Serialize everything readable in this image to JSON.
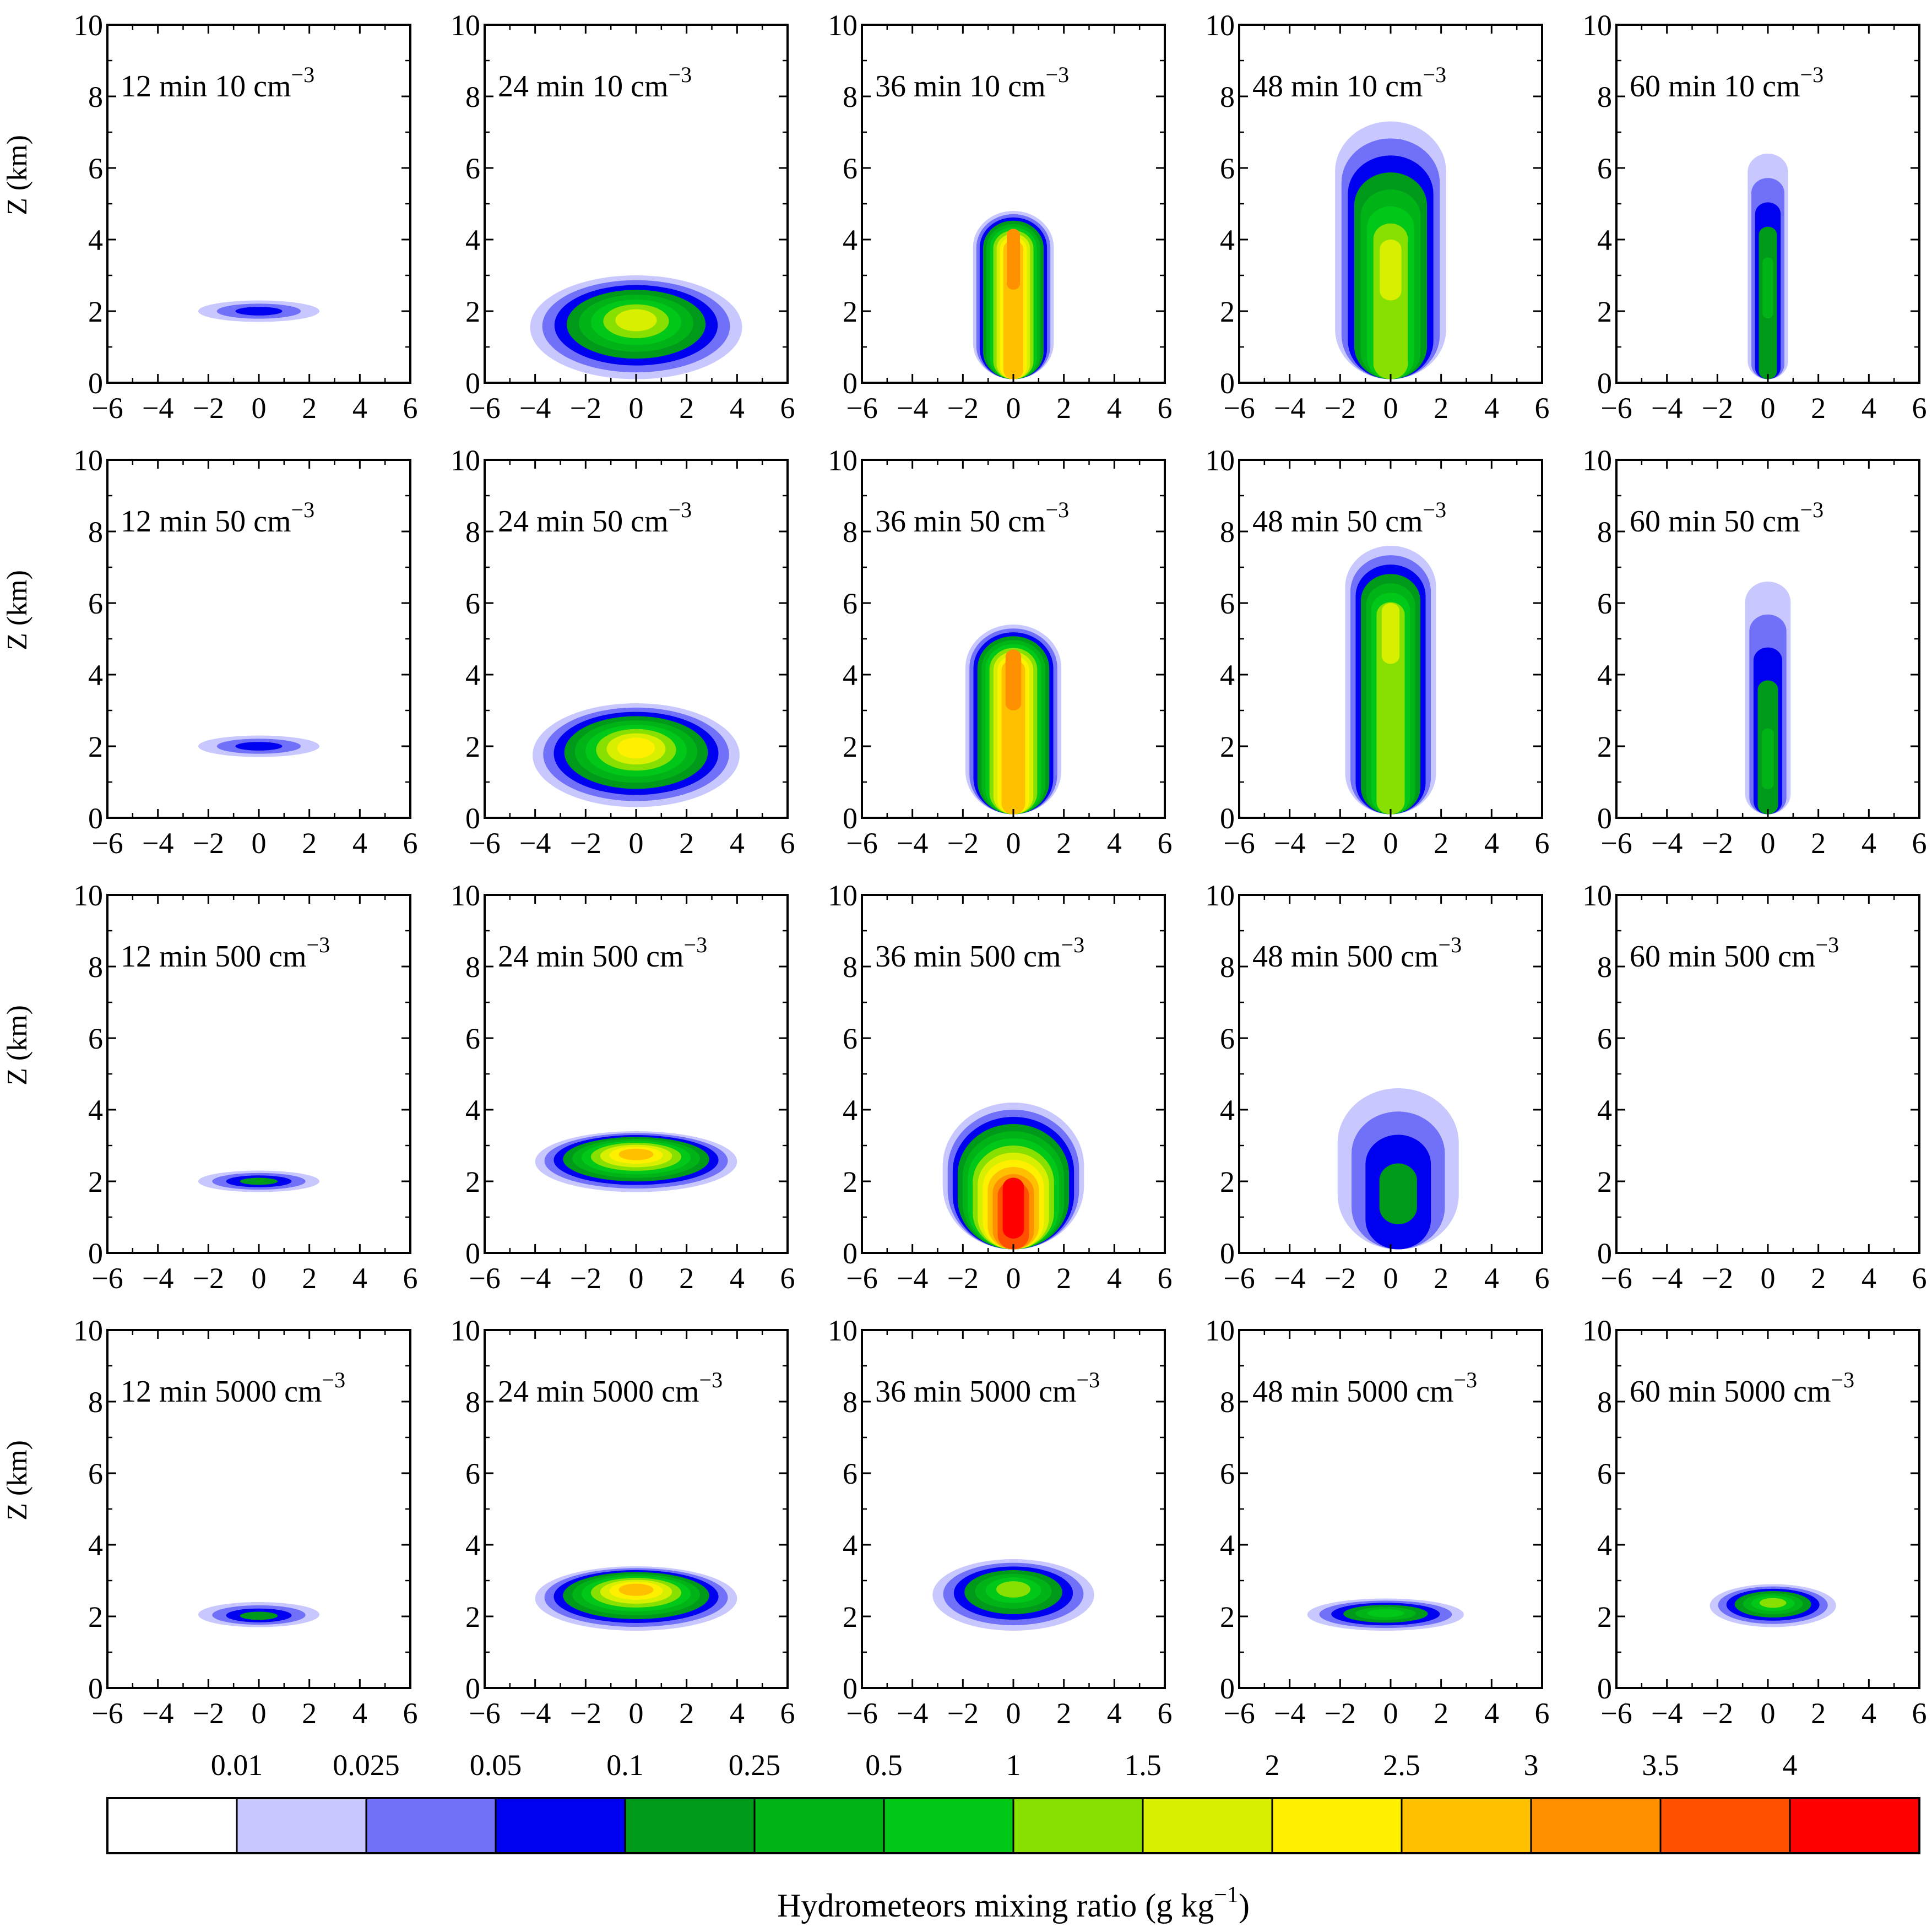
{
  "chart_data": {
    "type": "contour-panels",
    "rows": [
      {
        "concentration_num": "10",
        "concentration_unit": "cm",
        "concentration_exp": "−3"
      },
      {
        "concentration_num": "50",
        "concentration_unit": "cm",
        "concentration_exp": "−3"
      },
      {
        "concentration_num": "500",
        "concentration_unit": "cm",
        "concentration_exp": "−3"
      },
      {
        "concentration_num": "5000",
        "concentration_unit": "cm",
        "concentration_exp": "−3"
      }
    ],
    "columns": [
      {
        "time": "12 min"
      },
      {
        "time": "24 min"
      },
      {
        "time": "36 min"
      },
      {
        "time": "48 min"
      },
      {
        "time": "60 min"
      }
    ],
    "xaxis": {
      "ticks": [
        "−6",
        "−4",
        "−2",
        "0",
        "2",
        "4",
        "6"
      ],
      "range": [
        -6,
        6
      ]
    },
    "yaxis": {
      "ticks": [
        "0",
        "2",
        "4",
        "6",
        "8",
        "10"
      ],
      "range": [
        0,
        10
      ],
      "label": "Z (km)"
    },
    "colorbar": {
      "title": "Hydrometeors mixing ratio (g kg",
      "title_exp": "−1",
      "title_close": ")",
      "levels": [
        "0.01",
        "0.025",
        "0.05",
        "0.1",
        "0.25",
        "0.5",
        "1",
        "1.5",
        "2",
        "2.5",
        "3",
        "3.5",
        "4"
      ],
      "colors": [
        "#ffffff",
        "#c8c8ff",
        "#7070f8",
        "#0000f0",
        "#009a1a",
        "#00b418",
        "#00c818",
        "#88e000",
        "#d8f000",
        "#fff000",
        "#ffc000",
        "#ff9000",
        "#ff5000",
        "#ff0000"
      ]
    },
    "cells": [
      [
        {
          "shape": "blob",
          "x0": 0,
          "hw": 2.4,
          "zb": 1.7,
          "zt": 2.3,
          "core": 3,
          "cz": 2.0
        },
        {
          "shape": "blob",
          "x0": 0,
          "hw": 4.2,
          "zb": 0.1,
          "zt": 3.0,
          "core": 8,
          "cz": 1.8
        },
        {
          "shape": "column",
          "x0": 0,
          "hw": 1.6,
          "zb": 0.1,
          "zt": 4.8,
          "core": 11,
          "cz": 3.8
        },
        {
          "shape": "column",
          "x0": 0,
          "hw": 2.2,
          "zb": 0.1,
          "zt": 7.3,
          "core": 8,
          "cz": 3.5
        },
        {
          "shape": "column",
          "x0": 0,
          "hw": 0.8,
          "zb": 0.1,
          "zt": 6.4,
          "core": 5,
          "cz": 3.0
        }
      ],
      [
        {
          "shape": "blob",
          "x0": 0,
          "hw": 2.4,
          "zb": 1.7,
          "zt": 2.3,
          "core": 3,
          "cz": 2.0
        },
        {
          "shape": "blob",
          "x0": 0,
          "hw": 4.1,
          "zb": 0.3,
          "zt": 3.2,
          "core": 9,
          "cz": 2.0
        },
        {
          "shape": "column",
          "x0": 0,
          "hw": 1.9,
          "zb": 0.1,
          "zt": 5.4,
          "core": 11,
          "cz": 4.2
        },
        {
          "shape": "column",
          "x0": 0,
          "hw": 1.8,
          "zb": 0.1,
          "zt": 7.6,
          "core": 8,
          "cz": 5.5
        },
        {
          "shape": "column",
          "x0": 0,
          "hw": 0.9,
          "zb": 0.1,
          "zt": 6.6,
          "core": 5,
          "cz": 2.0
        }
      ],
      [
        {
          "shape": "blob",
          "x0": 0,
          "hw": 2.4,
          "zb": 1.7,
          "zt": 2.3,
          "core": 4,
          "cz": 2.0
        },
        {
          "shape": "blob",
          "x0": 0,
          "hw": 4.0,
          "zb": 1.7,
          "zt": 3.4,
          "core": 10,
          "cz": 2.8
        },
        {
          "shape": "column",
          "x0": 0,
          "hw": 2.8,
          "zb": 0.1,
          "zt": 4.2,
          "core": 13,
          "cz": 1.6
        },
        {
          "shape": "column",
          "x0": 0.3,
          "hw": 2.4,
          "zb": 0.1,
          "zt": 4.6,
          "core": 4,
          "cz": 2.0
        },
        {
          "shape": "none"
        }
      ],
      [
        {
          "shape": "blob",
          "x0": 0,
          "hw": 2.4,
          "zb": 1.7,
          "zt": 2.4,
          "core": 4,
          "cz": 2.0
        },
        {
          "shape": "blob",
          "x0": 0,
          "hw": 4.0,
          "zb": 1.6,
          "zt": 3.4,
          "core": 10,
          "cz": 2.8
        },
        {
          "shape": "blob",
          "x0": 0,
          "hw": 3.2,
          "zb": 1.6,
          "zt": 3.6,
          "core": 7,
          "cz": 2.8
        },
        {
          "shape": "blob",
          "x0": -0.2,
          "hw": 3.1,
          "zb": 1.6,
          "zt": 2.5,
          "core": 6,
          "cz": 2.1
        },
        {
          "shape": "blob",
          "x0": 0.2,
          "hw": 2.5,
          "zb": 1.7,
          "zt": 2.9,
          "core": 7,
          "cz": 2.4
        }
      ]
    ]
  }
}
